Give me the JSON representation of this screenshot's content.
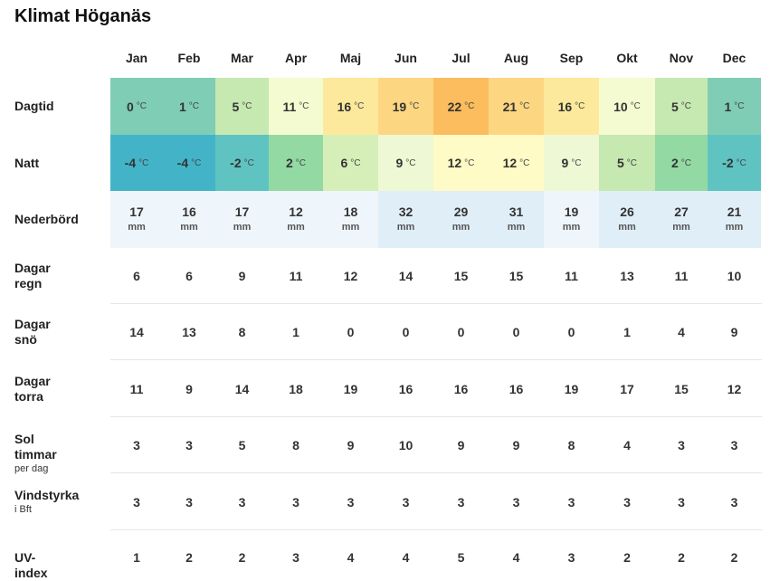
{
  "title": "Klimat Höganäs",
  "months": [
    "Jan",
    "Feb",
    "Mar",
    "Apr",
    "Maj",
    "Jun",
    "Jul",
    "Aug",
    "Sep",
    "Okt",
    "Nov",
    "Dec"
  ],
  "rows": [
    {
      "key": "day",
      "label": "Dagtid",
      "sub": "",
      "unit": "°C",
      "values": [
        "0",
        "1",
        "5",
        "11",
        "16",
        "19",
        "22",
        "21",
        "16",
        "10",
        "5",
        "1"
      ],
      "colors": [
        "#7fcdb5",
        "#7fcdb5",
        "#c6e8b1",
        "#f4fbd0",
        "#fde99b",
        "#fdd682",
        "#fbbd5d",
        "#fdd682",
        "#fde99b",
        "#f4fbd0",
        "#c6e8b1",
        "#7fcdb5"
      ]
    },
    {
      "key": "night",
      "label": "Natt",
      "sub": "",
      "unit": "°C",
      "values": [
        "-4",
        "-4",
        "-2",
        "2",
        "6",
        "9",
        "12",
        "12",
        "9",
        "5",
        "2",
        "-2"
      ],
      "colors": [
        "#43b4c8",
        "#43b4c8",
        "#5fc3c2",
        "#93d9a4",
        "#d6efb8",
        "#eef8d4",
        "#fffbc6",
        "#fffbc6",
        "#eef8d4",
        "#c6e8b1",
        "#93d9a4",
        "#5fc3c2"
      ]
    },
    {
      "key": "precip",
      "label": "Nederbörd",
      "sub": "",
      "unit": "mm",
      "values": [
        "17",
        "16",
        "17",
        "12",
        "18",
        "32",
        "29",
        "31",
        "19",
        "26",
        "27",
        "21"
      ],
      "colors": [
        "#eef6fb",
        "#eef6fb",
        "#eef6fb",
        "#eef6fb",
        "#eef6fb",
        "#e0eef8",
        "#e0eef8",
        "#e0eef8",
        "#eef6fb",
        "#e0eef8",
        "#e0eef8",
        "#e0eef8"
      ]
    },
    {
      "key": "rain",
      "label": "Dagar",
      "label2": "regn",
      "sub": "",
      "values": [
        "6",
        "6",
        "9",
        "11",
        "12",
        "14",
        "15",
        "15",
        "11",
        "13",
        "11",
        "10"
      ]
    },
    {
      "key": "snow",
      "label": "Dagar",
      "label2": "snö",
      "sub": "",
      "values": [
        "14",
        "13",
        "8",
        "1",
        "0",
        "0",
        "0",
        "0",
        "0",
        "1",
        "4",
        "9"
      ]
    },
    {
      "key": "dry",
      "label": "Dagar",
      "label2": "torra",
      "sub": "",
      "values": [
        "11",
        "9",
        "14",
        "18",
        "19",
        "16",
        "16",
        "16",
        "19",
        "17",
        "15",
        "12"
      ]
    },
    {
      "key": "sun",
      "label": "Sol timmar",
      "label2": "",
      "sub": "per dag",
      "values": [
        "3",
        "3",
        "5",
        "8",
        "9",
        "10",
        "9",
        "9",
        "8",
        "4",
        "3",
        "3"
      ]
    },
    {
      "key": "wind",
      "label": "Vindstyrka",
      "label2": "",
      "sub": "i Bft",
      "values": [
        "3",
        "3",
        "3",
        "3",
        "3",
        "3",
        "3",
        "3",
        "3",
        "3",
        "3",
        "3"
      ]
    },
    {
      "key": "uv",
      "label": "UV-index",
      "label2": "",
      "sub": "",
      "values": [
        "1",
        "2",
        "2",
        "3",
        "4",
        "4",
        "5",
        "4",
        "3",
        "2",
        "2",
        "2"
      ]
    }
  ]
}
